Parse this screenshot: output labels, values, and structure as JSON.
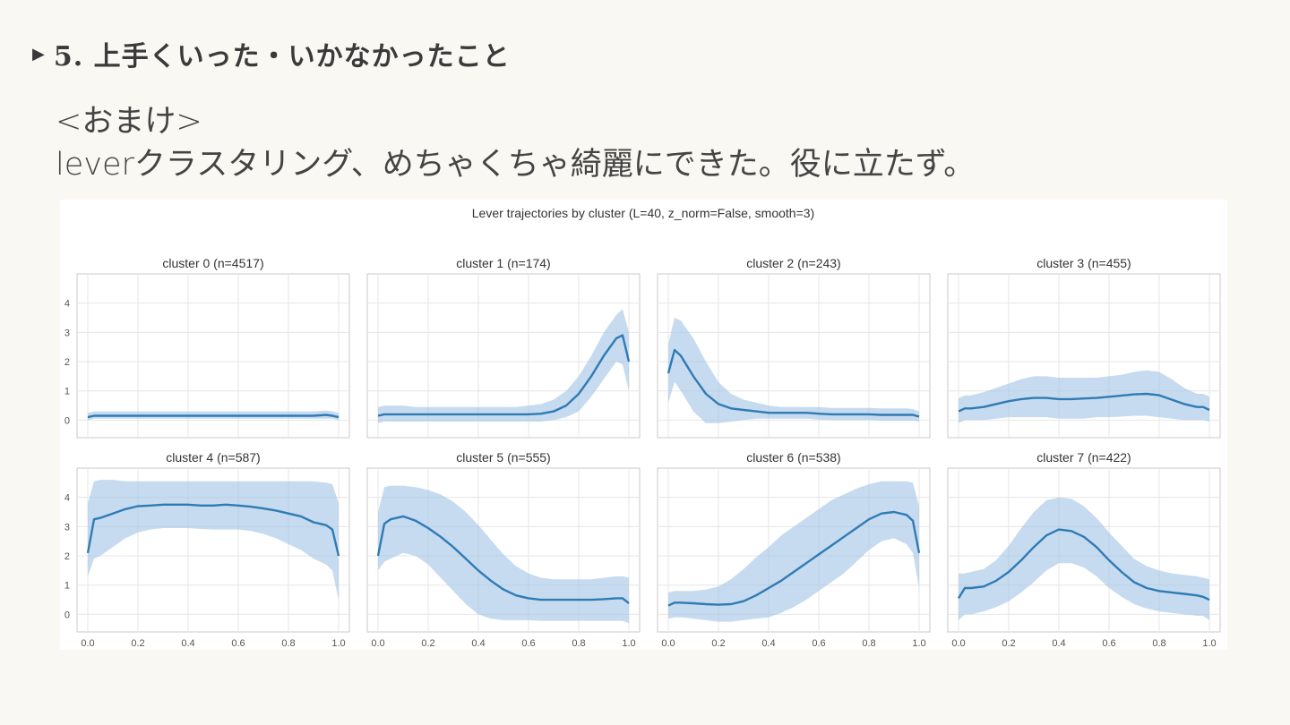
{
  "slide": {
    "heading": "5. 上手くいった・いかなかったこと",
    "line1": "<おまけ>",
    "line2": "leverクラスタリング、めちゃくちゃ綺麗にできた。役に立たず。"
  },
  "colors": {
    "mean": "#2f7bb4",
    "band": "#a7c8e6",
    "grid": "#e6e6e6",
    "frame": "#c8c8c8",
    "text": "#333333"
  },
  "chart_data": {
    "type": "line",
    "suptitle": "Lever trajectories by cluster (L=40, z_norm=False, smooth=3)",
    "shared_x": true,
    "shared_y": true,
    "xlim": [
      0.0,
      1.0
    ],
    "ylim": [
      -0.6,
      5.0
    ],
    "x_ticks": [
      "0.0",
      "0.2",
      "0.4",
      "0.6",
      "0.8",
      "1.0"
    ],
    "y_ticks": [
      "0",
      "1",
      "2",
      "3",
      "4"
    ],
    "grid": true,
    "x": [
      0.0,
      0.025,
      0.05,
      0.1,
      0.15,
      0.2,
      0.25,
      0.3,
      0.35,
      0.4,
      0.45,
      0.5,
      0.55,
      0.6,
      0.65,
      0.7,
      0.75,
      0.8,
      0.85,
      0.9,
      0.95,
      0.975,
      1.0
    ],
    "panels": [
      {
        "title": "cluster 0 (n=4517)",
        "mean": [
          0.1,
          0.15,
          0.15,
          0.15,
          0.15,
          0.15,
          0.15,
          0.15,
          0.15,
          0.15,
          0.15,
          0.15,
          0.15,
          0.15,
          0.15,
          0.15,
          0.15,
          0.15,
          0.15,
          0.15,
          0.18,
          0.15,
          0.1
        ],
        "upper": [
          0.25,
          0.3,
          0.3,
          0.3,
          0.3,
          0.3,
          0.3,
          0.3,
          0.3,
          0.3,
          0.3,
          0.3,
          0.3,
          0.3,
          0.3,
          0.3,
          0.3,
          0.3,
          0.3,
          0.3,
          0.33,
          0.3,
          0.25
        ],
        "lower": [
          0.0,
          0.05,
          0.05,
          0.05,
          0.05,
          0.05,
          0.05,
          0.05,
          0.05,
          0.05,
          0.05,
          0.05,
          0.05,
          0.05,
          0.05,
          0.05,
          0.05,
          0.05,
          0.05,
          0.05,
          0.05,
          0.05,
          0.0
        ]
      },
      {
        "title": "cluster 1 (n=174)",
        "mean": [
          0.15,
          0.2,
          0.2,
          0.2,
          0.2,
          0.2,
          0.2,
          0.2,
          0.2,
          0.2,
          0.2,
          0.2,
          0.2,
          0.2,
          0.22,
          0.3,
          0.5,
          0.9,
          1.5,
          2.2,
          2.8,
          2.9,
          2.0
        ],
        "upper": [
          0.45,
          0.5,
          0.5,
          0.5,
          0.45,
          0.45,
          0.45,
          0.45,
          0.45,
          0.45,
          0.45,
          0.45,
          0.45,
          0.5,
          0.55,
          0.7,
          1.0,
          1.5,
          2.2,
          3.0,
          3.6,
          3.8,
          3.0
        ],
        "lower": [
          -0.1,
          -0.05,
          -0.05,
          -0.05,
          -0.05,
          -0.05,
          -0.05,
          -0.05,
          -0.05,
          -0.05,
          -0.05,
          -0.05,
          -0.05,
          -0.05,
          -0.05,
          0.0,
          0.1,
          0.3,
          0.8,
          1.4,
          2.0,
          1.9,
          1.0
        ]
      },
      {
        "title": "cluster 2 (n=243)",
        "mean": [
          1.6,
          2.4,
          2.2,
          1.5,
          0.9,
          0.55,
          0.4,
          0.35,
          0.3,
          0.25,
          0.25,
          0.25,
          0.25,
          0.22,
          0.2,
          0.2,
          0.2,
          0.2,
          0.18,
          0.18,
          0.18,
          0.18,
          0.12
        ],
        "upper": [
          2.6,
          3.5,
          3.4,
          2.8,
          2.0,
          1.3,
          0.9,
          0.7,
          0.6,
          0.5,
          0.45,
          0.45,
          0.45,
          0.45,
          0.42,
          0.42,
          0.42,
          0.42,
          0.4,
          0.4,
          0.4,
          0.38,
          0.3
        ],
        "lower": [
          0.6,
          1.3,
          1.0,
          0.3,
          -0.1,
          -0.1,
          -0.05,
          0.0,
          0.05,
          0.05,
          0.05,
          0.05,
          0.05,
          0.02,
          0.0,
          0.0,
          0.0,
          0.0,
          -0.02,
          -0.02,
          -0.02,
          -0.02,
          -0.05
        ]
      },
      {
        "title": "cluster 3 (n=455)",
        "mean": [
          0.3,
          0.4,
          0.4,
          0.45,
          0.55,
          0.65,
          0.72,
          0.76,
          0.76,
          0.72,
          0.72,
          0.74,
          0.76,
          0.8,
          0.84,
          0.88,
          0.9,
          0.85,
          0.7,
          0.55,
          0.45,
          0.45,
          0.35
        ],
        "upper": [
          0.75,
          0.85,
          0.85,
          0.95,
          1.1,
          1.25,
          1.4,
          1.5,
          1.5,
          1.45,
          1.45,
          1.45,
          1.45,
          1.5,
          1.55,
          1.65,
          1.7,
          1.65,
          1.4,
          1.1,
          0.9,
          0.9,
          0.8
        ],
        "lower": [
          -0.1,
          0.0,
          0.0,
          0.0,
          0.05,
          0.1,
          0.1,
          0.1,
          0.1,
          0.05,
          0.05,
          0.05,
          0.1,
          0.1,
          0.12,
          0.15,
          0.15,
          0.1,
          0.05,
          0.0,
          0.0,
          0.0,
          -0.05
        ]
      },
      {
        "title": "cluster 4 (n=587)",
        "mean": [
          2.1,
          3.25,
          3.3,
          3.45,
          3.6,
          3.7,
          3.72,
          3.75,
          3.75,
          3.75,
          3.72,
          3.72,
          3.75,
          3.72,
          3.68,
          3.62,
          3.55,
          3.45,
          3.35,
          3.15,
          3.05,
          2.9,
          2.0
        ],
        "upper": [
          3.8,
          4.55,
          4.6,
          4.6,
          4.55,
          4.55,
          4.55,
          4.55,
          4.55,
          4.55,
          4.55,
          4.55,
          4.55,
          4.55,
          4.55,
          4.55,
          4.55,
          4.55,
          4.55,
          4.55,
          4.5,
          4.45,
          3.8
        ],
        "lower": [
          1.3,
          1.9,
          2.0,
          2.3,
          2.6,
          2.8,
          2.9,
          2.95,
          2.95,
          2.95,
          2.92,
          2.9,
          2.9,
          2.9,
          2.85,
          2.75,
          2.6,
          2.4,
          2.2,
          1.9,
          1.7,
          1.5,
          0.5
        ]
      },
      {
        "title": "cluster 5 (n=555)",
        "mean": [
          2.0,
          3.1,
          3.25,
          3.35,
          3.2,
          2.95,
          2.65,
          2.3,
          1.9,
          1.5,
          1.15,
          0.85,
          0.65,
          0.55,
          0.5,
          0.5,
          0.5,
          0.5,
          0.5,
          0.52,
          0.55,
          0.55,
          0.38
        ],
        "upper": [
          3.5,
          4.35,
          4.4,
          4.4,
          4.35,
          4.25,
          4.1,
          3.85,
          3.5,
          3.05,
          2.55,
          2.05,
          1.65,
          1.4,
          1.25,
          1.2,
          1.2,
          1.2,
          1.2,
          1.25,
          1.3,
          1.3,
          1.25
        ],
        "lower": [
          1.5,
          1.8,
          1.9,
          2.1,
          2.0,
          1.7,
          1.25,
          0.8,
          0.35,
          0.0,
          -0.15,
          -0.2,
          -0.2,
          -0.2,
          -0.22,
          -0.22,
          -0.22,
          -0.22,
          -0.22,
          -0.22,
          -0.22,
          -0.22,
          -0.3
        ]
      },
      {
        "title": "cluster 6 (n=538)",
        "mean": [
          0.3,
          0.4,
          0.4,
          0.38,
          0.35,
          0.33,
          0.35,
          0.45,
          0.65,
          0.9,
          1.15,
          1.45,
          1.75,
          2.05,
          2.35,
          2.65,
          2.95,
          3.25,
          3.45,
          3.5,
          3.4,
          3.2,
          2.1
        ],
        "upper": [
          0.75,
          0.8,
          0.8,
          0.8,
          0.85,
          0.95,
          1.2,
          1.55,
          1.95,
          2.3,
          2.7,
          3.0,
          3.3,
          3.6,
          3.9,
          4.1,
          4.3,
          4.45,
          4.55,
          4.55,
          4.55,
          4.5,
          3.7
        ],
        "lower": [
          -0.15,
          -0.1,
          -0.1,
          -0.15,
          -0.2,
          -0.25,
          -0.25,
          -0.2,
          -0.15,
          -0.1,
          0.05,
          0.25,
          0.5,
          0.8,
          1.1,
          1.4,
          1.8,
          2.2,
          2.5,
          2.6,
          2.4,
          2.1,
          0.9
        ]
      },
      {
        "title": "cluster 7 (n=422)",
        "mean": [
          0.55,
          0.9,
          0.9,
          0.95,
          1.15,
          1.45,
          1.85,
          2.3,
          2.7,
          2.9,
          2.85,
          2.65,
          2.3,
          1.85,
          1.45,
          1.1,
          0.9,
          0.8,
          0.75,
          0.7,
          0.65,
          0.6,
          0.5
        ],
        "upper": [
          1.4,
          1.4,
          1.45,
          1.55,
          1.85,
          2.35,
          2.95,
          3.5,
          3.9,
          4.0,
          3.95,
          3.7,
          3.3,
          2.8,
          2.35,
          1.9,
          1.65,
          1.5,
          1.4,
          1.35,
          1.3,
          1.25,
          1.2
        ],
        "lower": [
          -0.2,
          0.0,
          0.0,
          0.1,
          0.25,
          0.45,
          0.75,
          1.1,
          1.5,
          1.75,
          1.75,
          1.6,
          1.3,
          0.9,
          0.6,
          0.35,
          0.2,
          0.1,
          0.05,
          0.0,
          -0.05,
          -0.05,
          -0.2
        ]
      }
    ]
  }
}
